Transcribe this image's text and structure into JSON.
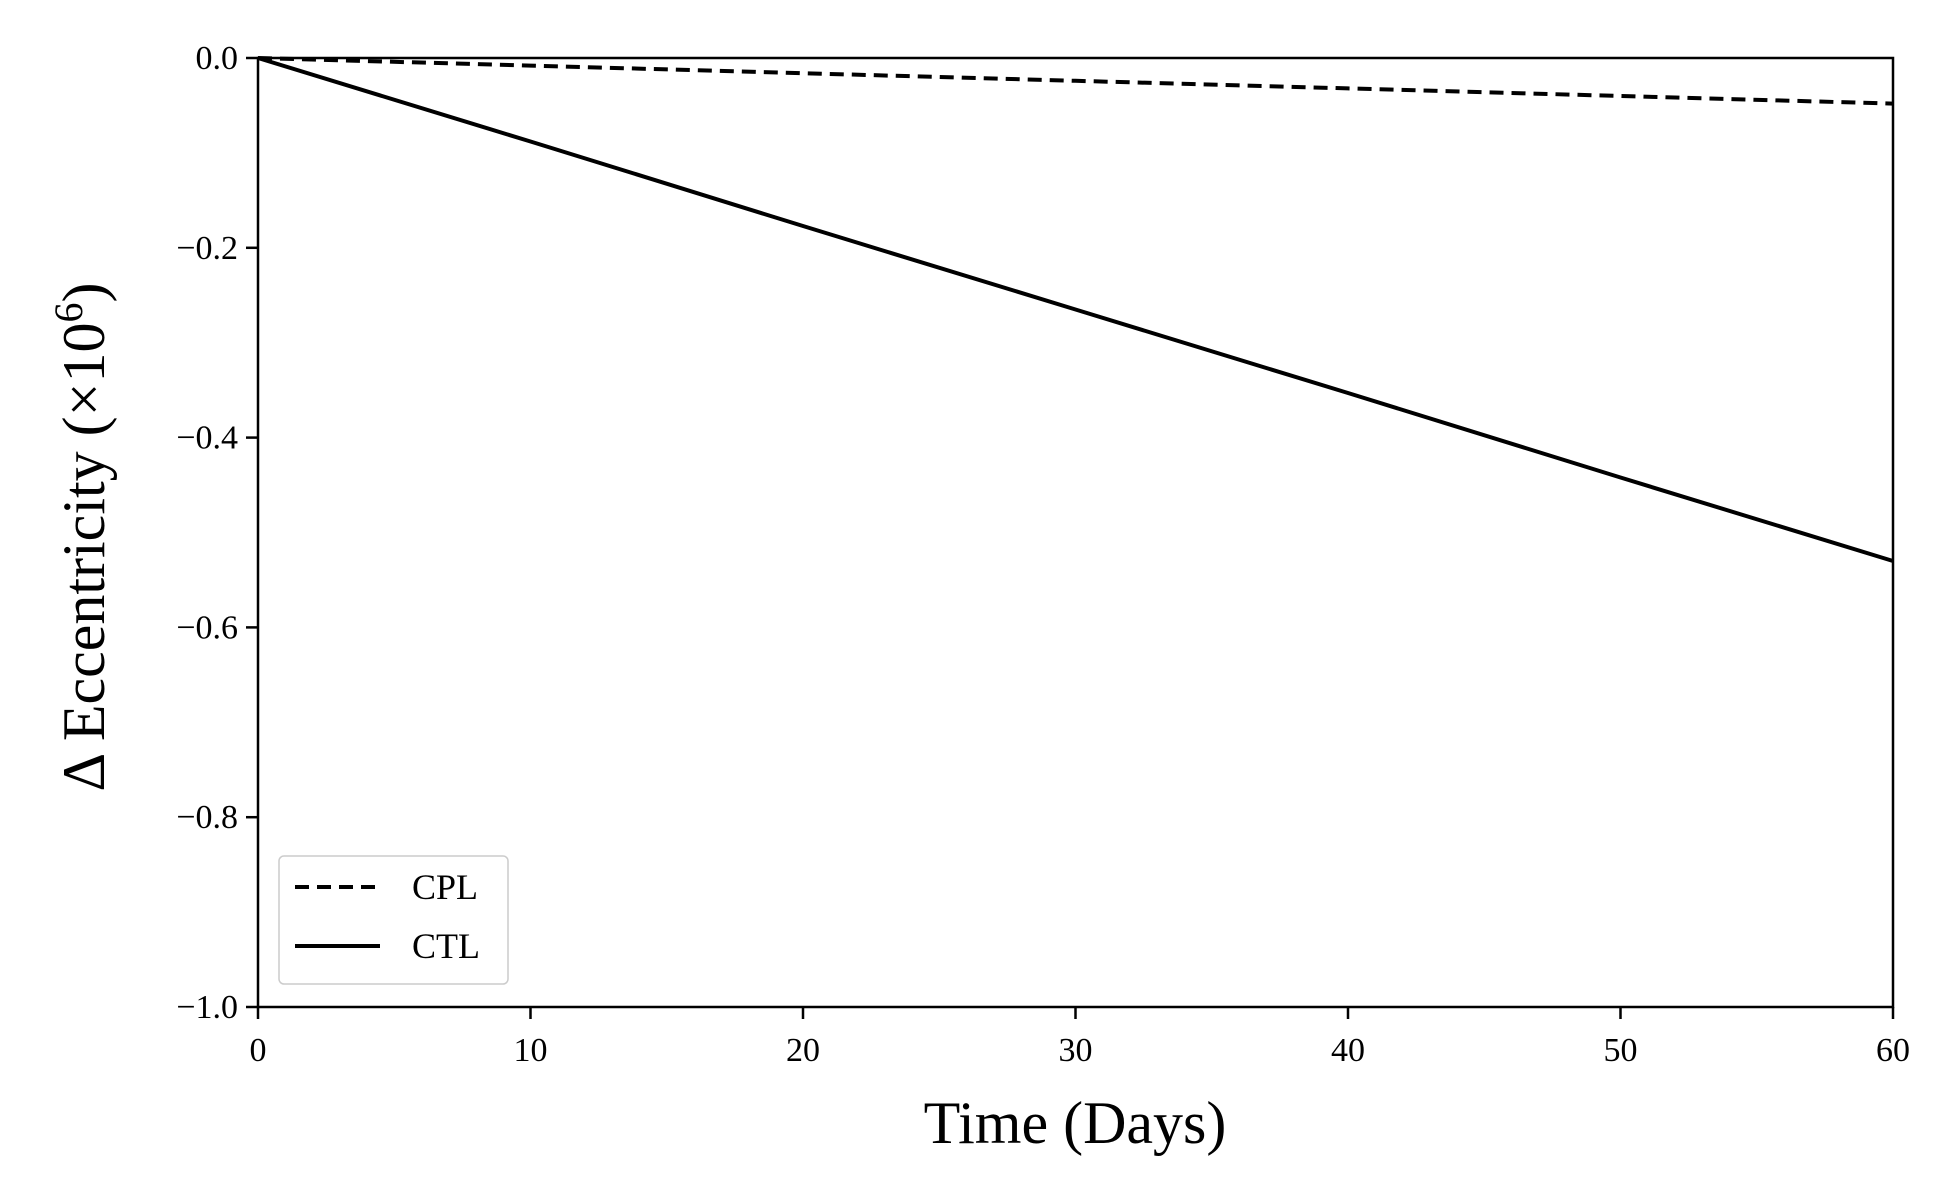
{
  "chart_data": {
    "type": "line",
    "xlabel": "Time (Days)",
    "ylabel_prefix": "Δ Eccentricity (×10",
    "ylabel_exponent": "6",
    "ylabel_suffix": ")",
    "xlim": [
      0,
      60
    ],
    "ylim": [
      -1.0,
      0.0
    ],
    "xticks": [
      0,
      10,
      20,
      30,
      40,
      50,
      60
    ],
    "xtick_labels": [
      "0",
      "10",
      "20",
      "30",
      "40",
      "50",
      "60"
    ],
    "yticks": [
      0.0,
      -0.2,
      -0.4,
      -0.6,
      -0.8,
      -1.0
    ],
    "ytick_labels": [
      "0.0",
      "−0.2",
      "−0.4",
      "−0.6",
      "−0.8",
      "−1.0"
    ],
    "grid": false,
    "legend_position": "lower-left",
    "series": [
      {
        "name": "CPL",
        "style": "dashed",
        "color": "#000000",
        "x": [
          0,
          10,
          20,
          30,
          40,
          50,
          60
        ],
        "y": [
          0.0,
          -0.008,
          -0.016,
          -0.024,
          -0.032,
          -0.04,
          -0.048
        ]
      },
      {
        "name": "CTL",
        "style": "solid",
        "color": "#000000",
        "x": [
          0,
          10,
          20,
          30,
          40,
          50,
          60
        ],
        "y": [
          0.0,
          -0.088,
          -0.177,
          -0.265,
          -0.353,
          -0.442,
          -0.53
        ]
      }
    ]
  }
}
